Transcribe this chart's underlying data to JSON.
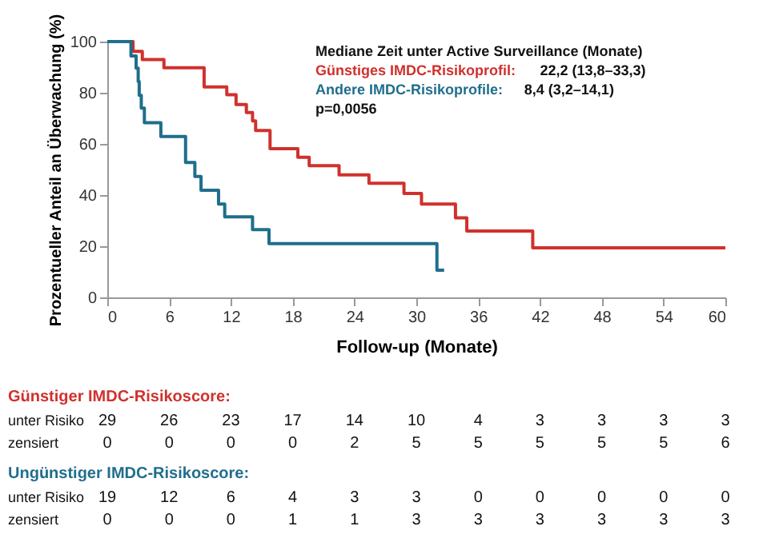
{
  "chart_data": {
    "type": "step",
    "ylabel": "Prozentueller Anteil an Überwachung (%)",
    "xlabel": "Follow-up (Monate)",
    "legend_title": "Mediane Zeit unter Active Surveillance (Monate)",
    "legend": "top right",
    "series": [
      {
        "name": "Günstiges IMDC-Risikoprofil:",
        "color": "#d0312d",
        "x": [
          0,
          2.5,
          3.4,
          5.5,
          9.4,
          11.6,
          12.5,
          13.5,
          14.1,
          14.4,
          15.8,
          18.5,
          19.6,
          22.5,
          25.4,
          28.8,
          30.5,
          33.8,
          34.9,
          41.3,
          60
        ],
        "values": [
          100,
          96.2,
          93,
          89.8,
          82.3,
          79.2,
          75.4,
          72.3,
          69,
          65.2,
          58.1,
          54.8,
          51.5,
          47.9,
          44.6,
          40.6,
          36.5,
          31.1,
          25.9,
          19.4,
          19.4
        ]
      },
      {
        "name": "Andere IMDC-Risikoprofile:",
        "color": "#1f6e8c",
        "x": [
          0,
          2.3,
          2.8,
          3.0,
          3.1,
          3.3,
          3.6,
          5.2,
          7.6,
          8.5,
          9.1,
          10.8,
          11.4,
          14.1,
          15.7,
          32.0,
          32.7
        ],
        "values": [
          100,
          94.4,
          89.6,
          84.4,
          79,
          74,
          68.3,
          62.9,
          52.7,
          47.3,
          41.9,
          36.5,
          31.5,
          26.5,
          21,
          10.6,
          10.6
        ]
      }
    ],
    "annotations": [
      "22,2 (13,8–33,3)",
      "8,4 (3,2–14,1)",
      "p=0,0056",
      "Günstiger IMDC-Risikoscore:",
      "unter Risiko",
      "29 26 23 17 14 10 4 3 3 3 3",
      "zensiert",
      "0 0 0 0 2 5 5 5 5 5 6",
      "Ungünstiger IMDC-Risikoscore:",
      "unter Risiko",
      "19 12 6 4 3 3 0 0 0 0 0",
      "zensiert",
      "0 0 0 1 1 3 3 3 3 3 3"
    ],
    "xlim": [
      0,
      60
    ],
    "xticks": [
      0,
      6,
      12,
      18,
      24,
      30,
      36,
      42,
      48,
      54,
      60
    ],
    "ylim": [
      0,
      100
    ],
    "yticks": [
      0,
      20,
      40,
      60,
      80,
      100
    ],
    "grid": false,
    "line_style": "solid",
    "marker": "none"
  }
}
